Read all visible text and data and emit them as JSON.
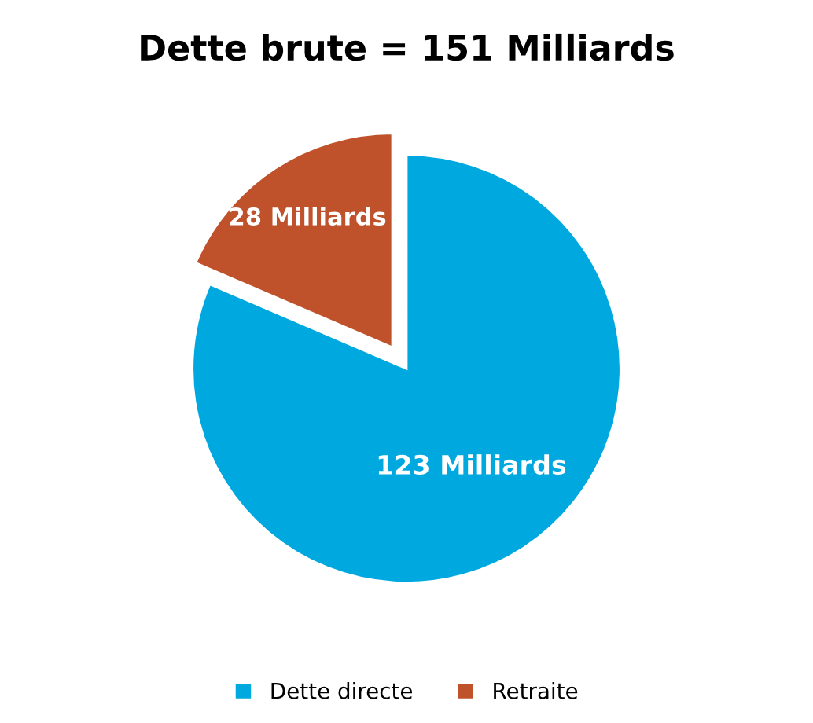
{
  "chart_data": {
    "type": "pie",
    "title": "Dette brute = 151 Milliards",
    "categories": [
      "Dette directe",
      "Retraite"
    ],
    "values": [
      123,
      28
    ],
    "colors": [
      "#00a8e0",
      "#c0522b"
    ],
    "value_labels": [
      "123 Milliards",
      "28 Milliards"
    ],
    "legend": "bottom"
  }
}
